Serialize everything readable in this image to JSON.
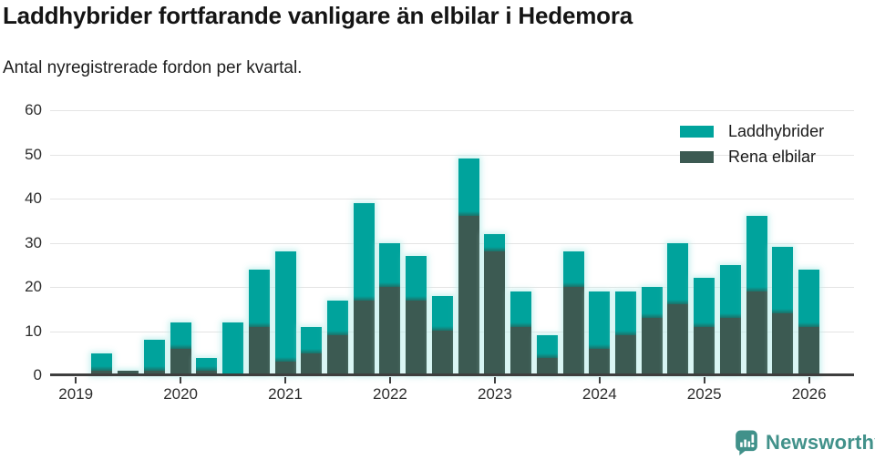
{
  "branding": {
    "label": "Newsworthy",
    "color": "#41918a"
  },
  "colors": {
    "laddhybrider": "#00a39c",
    "rena_elbilar": "#3c5a52",
    "axis": "#3e3e3e",
    "gridline": "#e4e4e4",
    "title_text": "#141414",
    "tick_text": "#2e2e2e"
  },
  "chart_data": {
    "type": "bar",
    "stacked": true,
    "title": "Laddhybrider fortfarande vanligare än elbilar i Hedemora",
    "subtitle": "Antal nyregistrerade fordon per kvartal.",
    "x": [
      "2019 Q1",
      "2019 Q2",
      "2019 Q3",
      "2019 Q4",
      "2020 Q1",
      "2020 Q2",
      "2020 Q3",
      "2020 Q4",
      "2021 Q1",
      "2021 Q2",
      "2021 Q3",
      "2021 Q4",
      "2022 Q1",
      "2022 Q2",
      "2022 Q3",
      "2022 Q4",
      "2023 Q1",
      "2023 Q2",
      "2023 Q3",
      "2023 Q4",
      "2024 Q1",
      "2024 Q2",
      "2024 Q3",
      "2024 Q4",
      "2025 Q1",
      "2025 Q2",
      "2025 Q3",
      "2025 Q4",
      "2026 Q1"
    ],
    "x_tick_labels": [
      "2019",
      "2020",
      "2021",
      "2022",
      "2023",
      "2024",
      "2025",
      "2026"
    ],
    "x_tick_positions": [
      0,
      4,
      8,
      12,
      16,
      20,
      24,
      28
    ],
    "ylim": [
      0,
      60
    ],
    "yticks": [
      0,
      10,
      20,
      30,
      40,
      50,
      60
    ],
    "grid": "horizontal",
    "legend_position": "top-right",
    "series": [
      {
        "name": "Laddhybrider",
        "color": "#00a39c",
        "stack_position": "top",
        "values": [
          0,
          4,
          0,
          7,
          6,
          3,
          12,
          13,
          25,
          6,
          8,
          22,
          10,
          10,
          8,
          13,
          4,
          8,
          5,
          8,
          13,
          10,
          7,
          14,
          11,
          12,
          17,
          15,
          13
        ]
      },
      {
        "name": "Rena elbilar",
        "color": "#3c5a52",
        "stack_position": "bottom",
        "values": [
          0,
          1,
          1,
          1,
          6,
          1,
          0,
          11,
          3,
          5,
          9,
          17,
          20,
          17,
          10,
          36,
          28,
          11,
          4,
          20,
          6,
          9,
          13,
          16,
          11,
          13,
          19,
          14,
          11
        ]
      }
    ],
    "totals": [
      0,
      5,
      1,
      8,
      12,
      4,
      12,
      24,
      28,
      11,
      17,
      39,
      30,
      27,
      18,
      49,
      32,
      19,
      9,
      28,
      19,
      19,
      20,
      30,
      22,
      25,
      36,
      29,
      24
    ]
  }
}
